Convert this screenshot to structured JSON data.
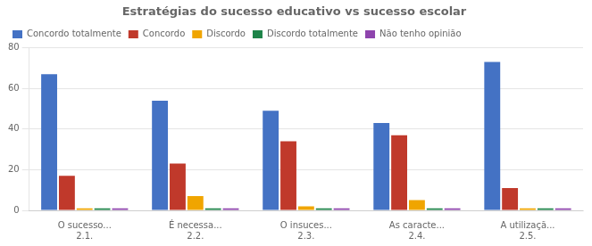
{
  "chart_data": {
    "type": "bar",
    "title": "Estratégias do sucesso educativo vs sucesso escolar",
    "categories": [
      [
        "O sucesso...",
        "2.1."
      ],
      [
        "É necessa...",
        "2.2."
      ],
      [
        "O insuces...",
        "2.3."
      ],
      [
        "As caracte...",
        "2.4."
      ],
      [
        "A utilizaçã...",
        "2.5."
      ]
    ],
    "series": [
      {
        "name": "Concordo totalmente",
        "color": "#4472C4",
        "values": [
          67,
          54,
          49,
          43,
          73
        ]
      },
      {
        "name": "Concordo",
        "color": "#C0392B",
        "values": [
          17,
          23,
          34,
          37,
          11
        ]
      },
      {
        "name": "Discordo",
        "color": "#F0A500",
        "values": [
          1,
          7,
          2,
          5,
          1
        ]
      },
      {
        "name": "Discordo totalmente",
        "color": "#1E8449",
        "values": [
          1,
          1,
          1,
          1,
          1
        ]
      },
      {
        "name": "Não tenho opinião",
        "color": "#8E44AD",
        "values": [
          1,
          1,
          1,
          1,
          1
        ]
      }
    ],
    "ylim": [
      0,
      80
    ],
    "yticks": [
      0,
      20,
      40,
      60,
      80
    ],
    "grid": true,
    "legend": "upper left"
  }
}
